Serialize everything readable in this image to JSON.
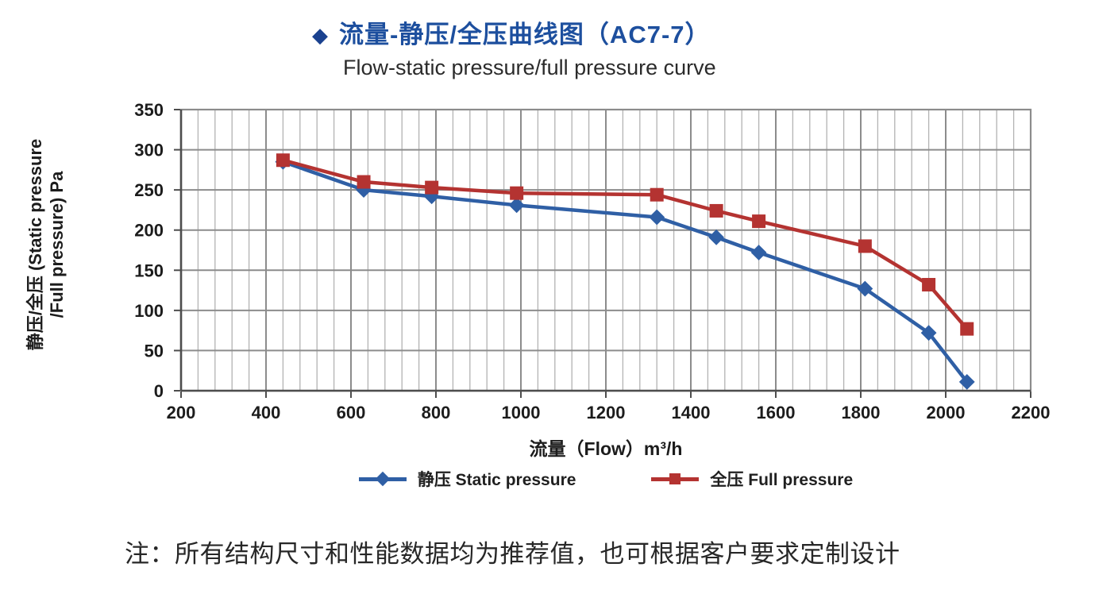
{
  "page": {
    "subtitle": "Flow-static pressure/full pressure curve",
    "note": "注：所有结构尺寸和性能数据均为推荐值，也可根据客户要求定制设计"
  },
  "icons": {
    "title_bullet": "◆"
  },
  "colors": {
    "title_blue": "#1d4f9e",
    "bullet_blue": "#1a418f",
    "static_blue": "#2f5fa5",
    "full_red": "#b43331",
    "grid_major": "#8c8c8c",
    "grid_minor": "#b3b3b3",
    "axis": "#4d4d4d",
    "text_dark": "#1c1c1c"
  },
  "chart_data": {
    "type": "line",
    "title": "流量-静压/全压曲线图（AC7-7）",
    "subtitle": "Flow-static pressure/full pressure curve",
    "xlabel": "流量（Flow）m³/h",
    "ylabel_line1": "静压/全压 (Static pressure",
    "ylabel_line2": "/Full pressure) Pa",
    "x": [
      440,
      630,
      790,
      990,
      1320,
      1460,
      1560,
      1810,
      1960,
      2050
    ],
    "series": [
      {
        "name": "静压 Static pressure",
        "marker": "diamond",
        "color": "#2f5fa5",
        "values": [
          285,
          250,
          242,
          231,
          216,
          191,
          172,
          127,
          72,
          11
        ]
      },
      {
        "name": "全压 Full pressure",
        "marker": "square",
        "color": "#b43331",
        "values": [
          287,
          260,
          253,
          246,
          244,
          224,
          211,
          180,
          132,
          77
        ]
      }
    ],
    "xlim": [
      200,
      2200
    ],
    "x_major_step": 200,
    "x_minor_step": 40,
    "ylim": [
      0,
      350
    ],
    "y_major_step": 50,
    "grid": true,
    "legend_position": "bottom"
  }
}
